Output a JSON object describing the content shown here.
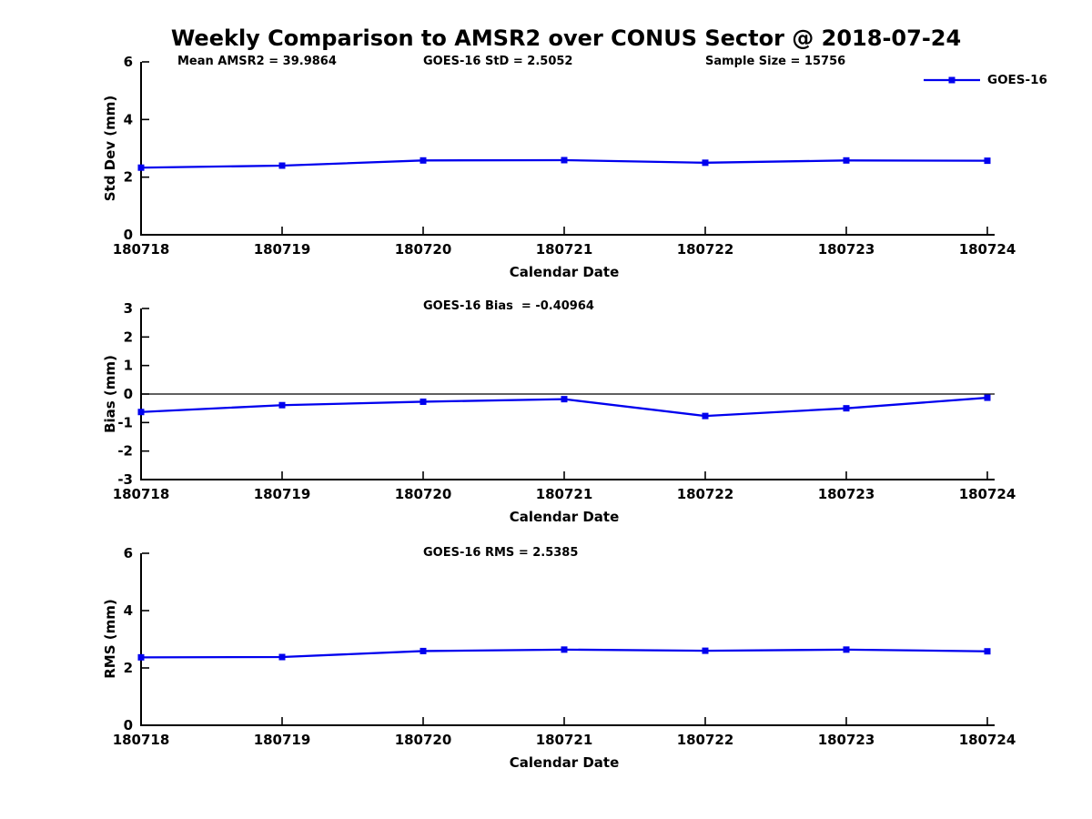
{
  "title": "Weekly Comparison to AMSR2 over CONUS Sector @ 2018-07-24",
  "legend": {
    "label": "GOES-16"
  },
  "chart_data": [
    {
      "id": "std-dev",
      "type": "line",
      "categories": [
        "180718",
        "180719",
        "180720",
        "180721",
        "180722",
        "180723",
        "180724"
      ],
      "series": [
        {
          "name": "GOES-16",
          "values": [
            2.33,
            2.4,
            2.58,
            2.59,
            2.5,
            2.58,
            2.57
          ]
        }
      ],
      "annotations": [
        "Mean AMSR2 = 39.9864",
        "GOES-16 StD = 2.5052",
        "Sample Size = 15756"
      ],
      "ylabel": "Std Dev (mm)",
      "xlabel": "Calendar Date",
      "ylim": [
        0,
        6
      ],
      "yticks": [
        0,
        2,
        4,
        6
      ],
      "grid": false,
      "zero_line": false,
      "line_color": "#0000EE",
      "marker": "square",
      "legend_position": "upper-right-outside"
    },
    {
      "id": "bias",
      "type": "line",
      "categories": [
        "180718",
        "180719",
        "180720",
        "180721",
        "180722",
        "180723",
        "180724"
      ],
      "series": [
        {
          "name": "GOES-16",
          "values": [
            -0.63,
            -0.39,
            -0.27,
            -0.18,
            -0.77,
            -0.5,
            -0.13
          ]
        }
      ],
      "annotations": [
        "GOES-16 Bias  = -0.40964"
      ],
      "ylabel": "Bias (mm)",
      "xlabel": "Calendar Date",
      "ylim": [
        -3,
        3
      ],
      "yticks": [
        -3,
        -2,
        -1,
        0,
        1,
        2,
        3
      ],
      "grid": false,
      "zero_line": true,
      "line_color": "#0000EE",
      "marker": "square"
    },
    {
      "id": "rms",
      "type": "line",
      "categories": [
        "180718",
        "180719",
        "180720",
        "180721",
        "180722",
        "180723",
        "180724"
      ],
      "series": [
        {
          "name": "GOES-16",
          "values": [
            2.37,
            2.38,
            2.59,
            2.64,
            2.6,
            2.64,
            2.58
          ]
        }
      ],
      "annotations": [
        "GOES-16 RMS = 2.5385"
      ],
      "ylabel": "RMS (mm)",
      "xlabel": "Calendar Date",
      "ylim": [
        0,
        6
      ],
      "yticks": [
        0,
        2,
        4,
        6
      ],
      "grid": false,
      "zero_line": false,
      "line_color": "#0000EE",
      "marker": "square"
    }
  ]
}
